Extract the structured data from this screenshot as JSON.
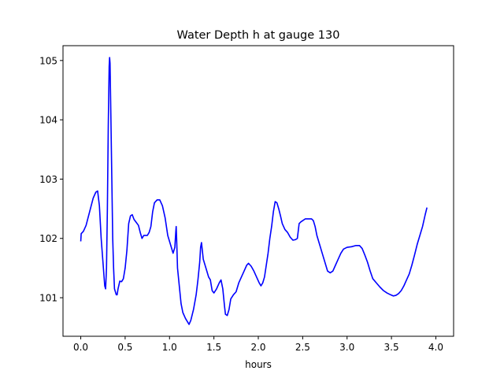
{
  "chart_data": {
    "type": "line",
    "title": "Water Depth h at gauge 130",
    "xlabel": "hours",
    "ylabel": "",
    "xlim": [
      -0.2,
      4.2
    ],
    "ylim": [
      100.35,
      105.25
    ],
    "x_ticks": [
      0.0,
      0.5,
      1.0,
      1.5,
      2.0,
      2.5,
      3.0,
      3.5,
      4.0
    ],
    "x_tick_labels": [
      "0.0",
      "0.5",
      "1.0",
      "1.5",
      "2.0",
      "2.5",
      "3.0",
      "3.5",
      "4.0"
    ],
    "y_ticks": [
      101,
      102,
      103,
      104,
      105
    ],
    "y_tick_labels": [
      "101",
      "102",
      "103",
      "104",
      "105"
    ],
    "grid": false,
    "series": [
      {
        "color": "#0000ff",
        "points": [
          [
            0.0,
            101.95
          ],
          [
            0.005,
            102.08
          ],
          [
            0.03,
            102.12
          ],
          [
            0.06,
            102.22
          ],
          [
            0.1,
            102.45
          ],
          [
            0.14,
            102.68
          ],
          [
            0.17,
            102.78
          ],
          [
            0.19,
            102.8
          ],
          [
            0.21,
            102.55
          ],
          [
            0.23,
            102.0
          ],
          [
            0.25,
            101.6
          ],
          [
            0.27,
            101.2
          ],
          [
            0.28,
            101.15
          ],
          [
            0.29,
            101.5
          ],
          [
            0.3,
            102.5
          ],
          [
            0.31,
            103.9
          ],
          [
            0.32,
            104.9
          ],
          [
            0.325,
            105.05
          ],
          [
            0.33,
            104.95
          ],
          [
            0.34,
            104.0
          ],
          [
            0.35,
            103.0
          ],
          [
            0.36,
            102.0
          ],
          [
            0.37,
            101.5
          ],
          [
            0.38,
            101.15
          ],
          [
            0.4,
            101.05
          ],
          [
            0.41,
            101.05
          ],
          [
            0.42,
            101.15
          ],
          [
            0.44,
            101.28
          ],
          [
            0.46,
            101.27
          ],
          [
            0.48,
            101.32
          ],
          [
            0.5,
            101.5
          ],
          [
            0.52,
            101.8
          ],
          [
            0.54,
            102.25
          ],
          [
            0.56,
            102.38
          ],
          [
            0.58,
            102.4
          ],
          [
            0.6,
            102.32
          ],
          [
            0.62,
            102.28
          ],
          [
            0.65,
            102.22
          ],
          [
            0.67,
            102.1
          ],
          [
            0.69,
            102.0
          ],
          [
            0.71,
            102.05
          ],
          [
            0.73,
            102.05
          ],
          [
            0.75,
            102.05
          ],
          [
            0.77,
            102.1
          ],
          [
            0.79,
            102.2
          ],
          [
            0.81,
            102.45
          ],
          [
            0.83,
            102.6
          ],
          [
            0.86,
            102.65
          ],
          [
            0.89,
            102.65
          ],
          [
            0.92,
            102.55
          ],
          [
            0.95,
            102.35
          ],
          [
            0.98,
            102.05
          ],
          [
            1.0,
            101.95
          ],
          [
            1.02,
            101.85
          ],
          [
            1.04,
            101.75
          ],
          [
            1.06,
            101.85
          ],
          [
            1.07,
            102.1
          ],
          [
            1.075,
            102.2
          ],
          [
            1.08,
            102.0
          ],
          [
            1.09,
            101.5
          ],
          [
            1.11,
            101.2
          ],
          [
            1.13,
            100.9
          ],
          [
            1.15,
            100.75
          ],
          [
            1.18,
            100.65
          ],
          [
            1.2,
            100.6
          ],
          [
            1.22,
            100.55
          ],
          [
            1.24,
            100.62
          ],
          [
            1.27,
            100.8
          ],
          [
            1.3,
            101.05
          ],
          [
            1.32,
            101.3
          ],
          [
            1.34,
            101.6
          ],
          [
            1.35,
            101.85
          ],
          [
            1.36,
            101.93
          ],
          [
            1.38,
            101.65
          ],
          [
            1.4,
            101.55
          ],
          [
            1.42,
            101.45
          ],
          [
            1.44,
            101.35
          ],
          [
            1.46,
            101.3
          ],
          [
            1.48,
            101.12
          ],
          [
            1.5,
            101.08
          ],
          [
            1.53,
            101.15
          ],
          [
            1.56,
            101.25
          ],
          [
            1.58,
            101.3
          ],
          [
            1.6,
            101.15
          ],
          [
            1.62,
            100.85
          ],
          [
            1.63,
            100.72
          ],
          [
            1.65,
            100.7
          ],
          [
            1.67,
            100.8
          ],
          [
            1.69,
            100.98
          ],
          [
            1.72,
            101.05
          ],
          [
            1.75,
            101.1
          ],
          [
            1.78,
            101.25
          ],
          [
            1.81,
            101.35
          ],
          [
            1.84,
            101.45
          ],
          [
            1.87,
            101.55
          ],
          [
            1.89,
            101.58
          ],
          [
            1.92,
            101.53
          ],
          [
            1.95,
            101.45
          ],
          [
            1.98,
            101.35
          ],
          [
            2.01,
            101.25
          ],
          [
            2.03,
            101.2
          ],
          [
            2.05,
            101.25
          ],
          [
            2.07,
            101.35
          ],
          [
            2.09,
            101.55
          ],
          [
            2.11,
            101.75
          ],
          [
            2.13,
            102.0
          ],
          [
            2.15,
            102.2
          ],
          [
            2.17,
            102.45
          ],
          [
            2.19,
            102.62
          ],
          [
            2.21,
            102.6
          ],
          [
            2.23,
            102.5
          ],
          [
            2.25,
            102.38
          ],
          [
            2.27,
            102.25
          ],
          [
            2.3,
            102.15
          ],
          [
            2.33,
            102.1
          ],
          [
            2.36,
            102.02
          ],
          [
            2.39,
            101.97
          ],
          [
            2.42,
            101.98
          ],
          [
            2.44,
            102.0
          ],
          [
            2.46,
            102.25
          ],
          [
            2.48,
            102.28
          ],
          [
            2.5,
            102.3
          ],
          [
            2.53,
            102.33
          ],
          [
            2.57,
            102.33
          ],
          [
            2.6,
            102.33
          ],
          [
            2.62,
            102.3
          ],
          [
            2.64,
            102.2
          ],
          [
            2.66,
            102.05
          ],
          [
            2.69,
            101.9
          ],
          [
            2.72,
            101.75
          ],
          [
            2.75,
            101.6
          ],
          [
            2.78,
            101.45
          ],
          [
            2.81,
            101.42
          ],
          [
            2.84,
            101.45
          ],
          [
            2.87,
            101.55
          ],
          [
            2.9,
            101.65
          ],
          [
            2.93,
            101.75
          ],
          [
            2.96,
            101.82
          ],
          [
            3.0,
            101.85
          ],
          [
            3.05,
            101.86
          ],
          [
            3.1,
            101.88
          ],
          [
            3.14,
            101.88
          ],
          [
            3.17,
            101.83
          ],
          [
            3.2,
            101.72
          ],
          [
            3.23,
            101.6
          ],
          [
            3.26,
            101.45
          ],
          [
            3.29,
            101.32
          ],
          [
            3.33,
            101.25
          ],
          [
            3.37,
            101.18
          ],
          [
            3.41,
            101.12
          ],
          [
            3.45,
            101.08
          ],
          [
            3.49,
            101.05
          ],
          [
            3.52,
            101.03
          ],
          [
            3.55,
            101.04
          ],
          [
            3.58,
            101.07
          ],
          [
            3.61,
            101.12
          ],
          [
            3.64,
            101.2
          ],
          [
            3.67,
            101.3
          ],
          [
            3.7,
            101.4
          ],
          [
            3.73,
            101.55
          ],
          [
            3.76,
            101.72
          ],
          [
            3.79,
            101.9
          ],
          [
            3.82,
            102.05
          ],
          [
            3.85,
            102.2
          ],
          [
            3.88,
            102.4
          ],
          [
            3.9,
            102.52
          ]
        ]
      }
    ]
  }
}
